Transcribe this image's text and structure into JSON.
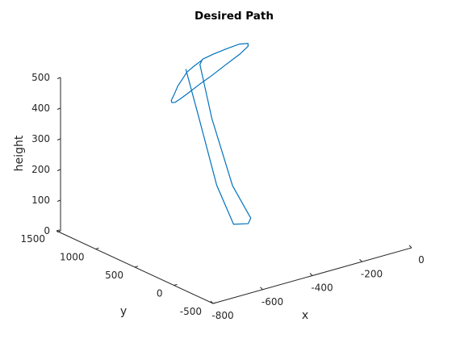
{
  "chart_data": {
    "type": "line",
    "projection": "3d",
    "title": "Desired Path",
    "xlabel": "x",
    "ylabel": "y",
    "zlabel": "height",
    "xlim": [
      -800,
      0
    ],
    "ylim": [
      -500,
      1500
    ],
    "zlim": [
      0,
      500
    ],
    "x_ticks": [
      "-800",
      "-600",
      "-400",
      "-200",
      "0"
    ],
    "y_ticks": [
      "-500",
      "0",
      "500",
      "1000",
      "1500"
    ],
    "z_ticks": [
      "0",
      "100",
      "200",
      "300",
      "400",
      "500"
    ],
    "grid": false,
    "colors": {
      "series": "#0072BD",
      "axis": "#262626"
    },
    "series": [
      {
        "name": "",
        "points": [
          [
            -310,
            1200,
            480
          ],
          [
            -355,
            1160,
            475
          ],
          [
            -395,
            1120,
            470
          ],
          [
            -425,
            1080,
            460
          ],
          [
            -450,
            1060,
            445
          ],
          [
            -465,
            1060,
            420
          ],
          [
            -470,
            1080,
            400
          ],
          [
            -455,
            1120,
            385
          ],
          [
            -430,
            1160,
            375
          ],
          [
            -390,
            1220,
            370
          ],
          [
            -340,
            1280,
            370
          ],
          [
            -280,
            1340,
            375
          ],
          [
            -210,
            1390,
            385
          ],
          [
            -140,
            1430,
            400
          ],
          [
            -80,
            1440,
            420
          ],
          [
            -50,
            1430,
            440
          ],
          [
            -60,
            1400,
            455
          ],
          [
            -110,
            1350,
            470
          ],
          [
            -180,
            1290,
            478
          ],
          [
            -250,
            1240,
            482
          ],
          [
            -305,
            1205,
            482
          ],
          [
            -320,
            1190,
            470
          ],
          [
            -300,
            1100,
            300
          ],
          [
            -280,
            900,
            100
          ],
          [
            -260,
            730,
            10
          ],
          [
            -280,
            700,
            0
          ],
          [
            -320,
            760,
            0
          ],
          [
            -350,
            880,
            120
          ],
          [
            -370,
            1050,
            330
          ],
          [
            -380,
            1180,
            470
          ]
        ]
      }
    ]
  }
}
